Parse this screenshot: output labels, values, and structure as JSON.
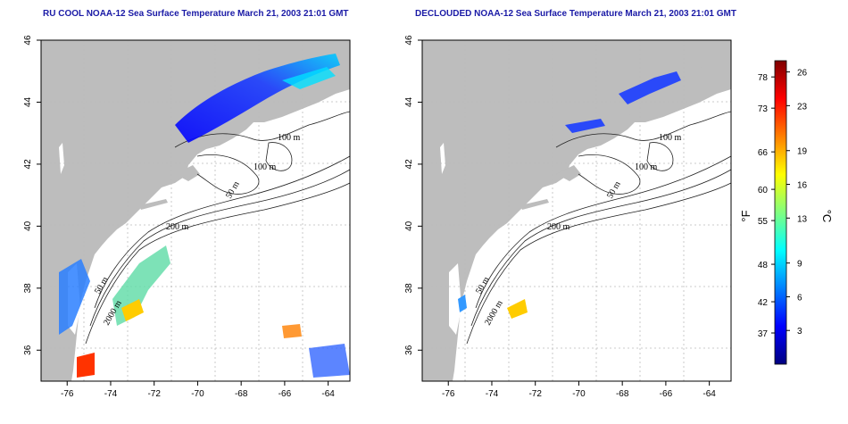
{
  "titles": {
    "left": "RU COOL NOAA-12 Sea Surface Temperature March 21, 2003 21:01 GMT",
    "right": "DECLOUDED NOAA-12 Sea Surface Temperature March 21, 2003 21:01 GMT"
  },
  "axes": {
    "lon_ticks": [
      -76,
      -74,
      -72,
      -70,
      -68,
      -66,
      -64
    ],
    "lat_ticks": [
      36,
      38,
      40,
      42,
      44,
      46
    ],
    "lon_range": [
      -77.2,
      -63.0
    ],
    "lat_range": [
      35.0,
      46.0
    ]
  },
  "contour_labels": [
    "100 m",
    "100 m",
    "50 m",
    "200 m",
    "50 m",
    "2000 m"
  ],
  "colorbar": {
    "fahrenheit_label": "°F",
    "celsius_label": "°C",
    "fahrenheit_ticks": [
      37,
      42,
      48,
      55,
      60,
      66,
      73,
      78
    ],
    "celsius_ticks": [
      3,
      6,
      9,
      13,
      16,
      19,
      23,
      26
    ],
    "range_c": [
      0,
      27
    ],
    "colors": [
      "#00007f",
      "#0000ff",
      "#0080ff",
      "#00ffff",
      "#80ff80",
      "#ffff00",
      "#ff8000",
      "#ff0000",
      "#7f0000"
    ]
  },
  "colors": {
    "land": "#bdbdbd",
    "ocean": "#ffffff",
    "grid": "#bbbbbb"
  }
}
